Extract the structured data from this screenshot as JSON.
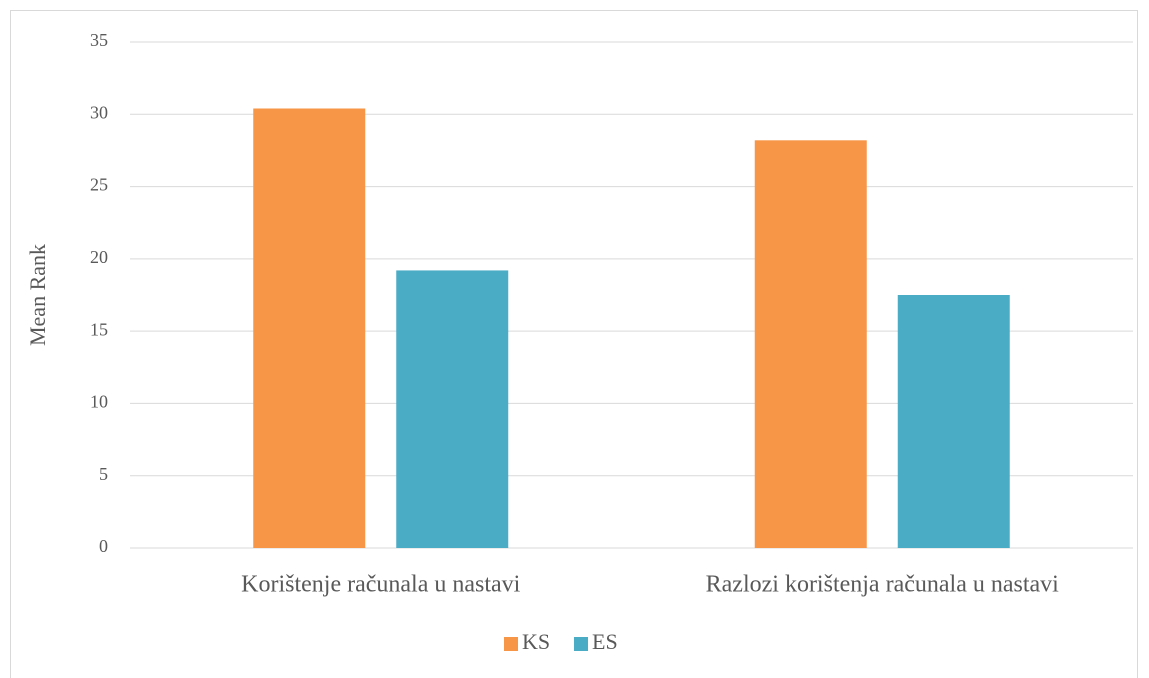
{
  "chart_data": {
    "type": "bar",
    "y_label": "Mean Rank",
    "categories": [
      "Korištenje računala u nastavi",
      "Razlozi korištenja računala u nastavi"
    ],
    "series": [
      {
        "name": "KS",
        "color": "#f79646",
        "values": [
          30.4,
          28.2
        ]
      },
      {
        "name": "ES",
        "color": "#4bacc6",
        "values": [
          19.2,
          17.5
        ]
      }
    ],
    "ylim": [
      0,
      35
    ],
    "yticks": [
      0,
      5,
      10,
      15,
      20,
      25,
      30,
      35
    ],
    "grid": true,
    "legend": "bottom"
  }
}
